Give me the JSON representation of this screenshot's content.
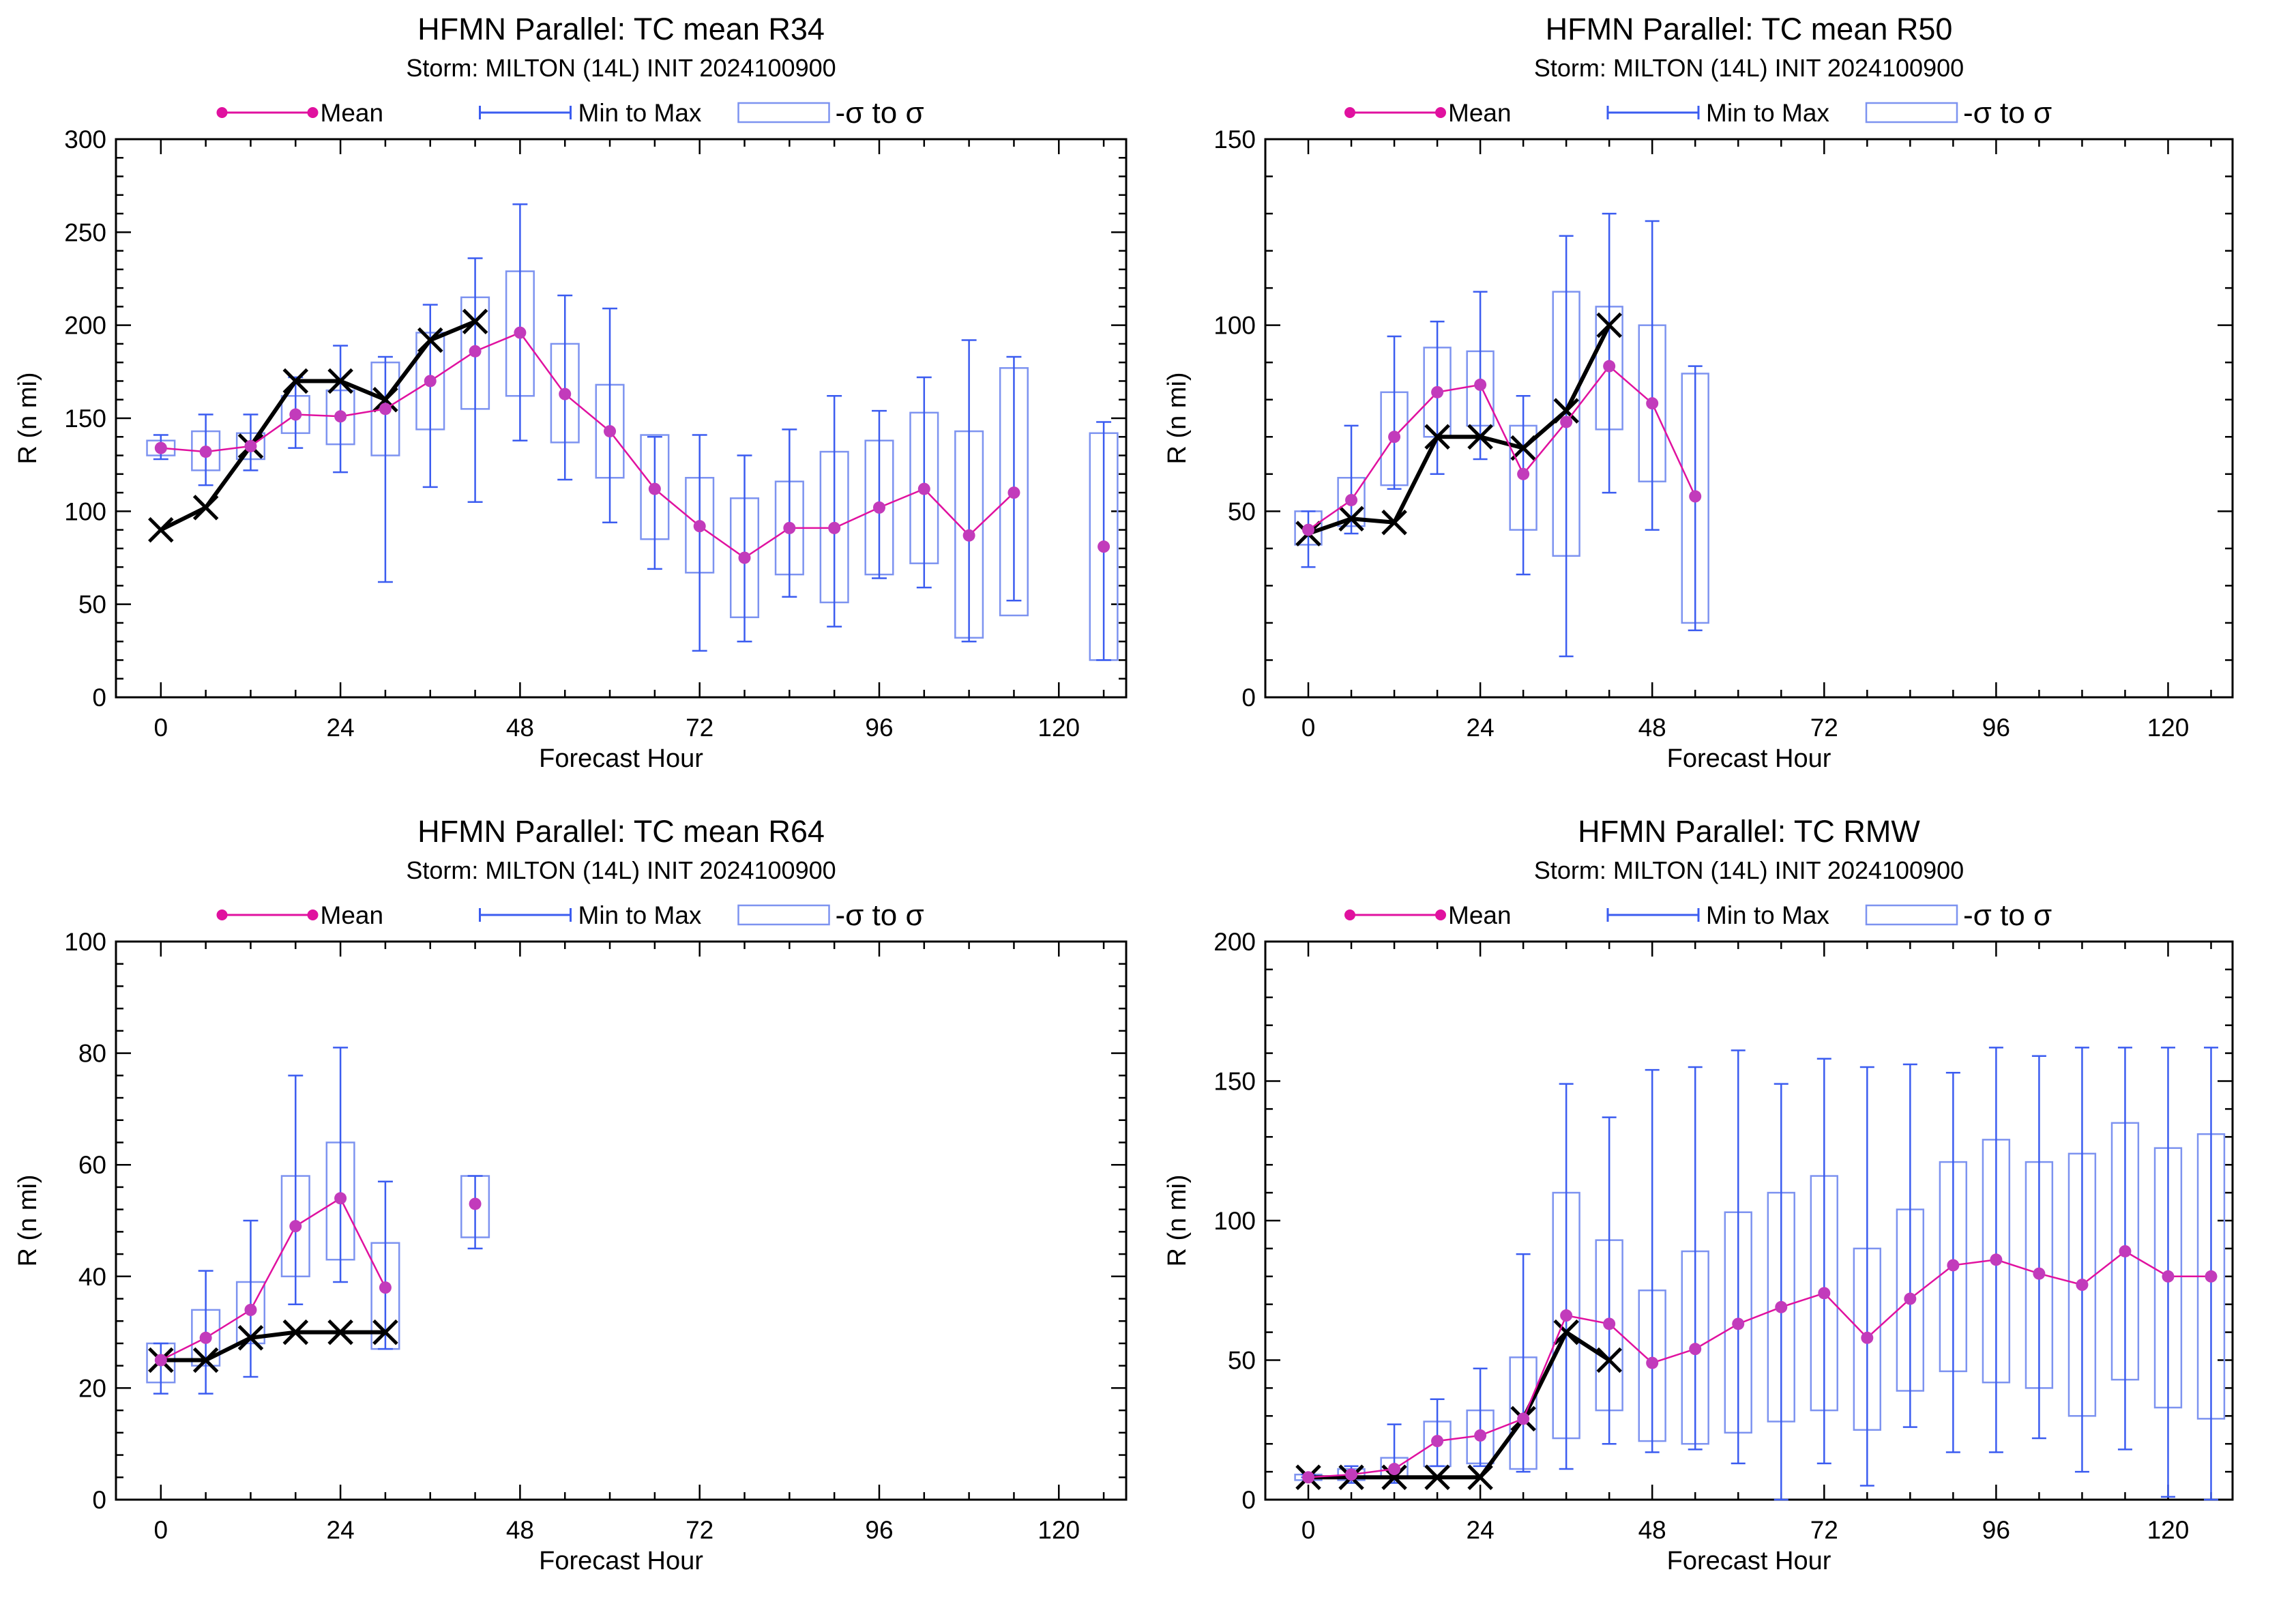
{
  "colors": {
    "mean": "#e0119f",
    "mean_marker": "#c23bbb",
    "range": "#3b5cf0",
    "sigma_box": "#7d93f0",
    "best_track": "#000000"
  },
  "legend": {
    "mean": "Mean",
    "range": "Min to Max",
    "sigma": "-σ to σ"
  },
  "chart_data": [
    {
      "type": "box",
      "title": "HFMN Parallel: TC mean R34",
      "subtitle": "Storm: MILTON (14L) INIT 2024100900",
      "xlabel": "Forecast Hour",
      "ylabel": "R (n mi)",
      "xlim": [
        -6,
        129
      ],
      "ylim": [
        0,
        300
      ],
      "xticks": [
        "0",
        "24",
        "48",
        "72",
        "96",
        "120"
      ],
      "yticks": [
        "0",
        "50",
        "100",
        "150",
        "200",
        "250",
        "300"
      ],
      "grid": false,
      "legend_position": "top",
      "series": [
        {
          "name": "Mean",
          "x": [
            0,
            6,
            12,
            18,
            24,
            30,
            36,
            42,
            48,
            54,
            60,
            66,
            72,
            78,
            84,
            90,
            96,
            102,
            108,
            114,
            126
          ],
          "mean": [
            134,
            132,
            135,
            152,
            151,
            155,
            170,
            186,
            196,
            163,
            143,
            112,
            92,
            75,
            91,
            91,
            102,
            112,
            87,
            110,
            81
          ],
          "min": [
            128,
            114,
            122,
            134,
            121,
            62,
            113,
            105,
            138,
            117,
            94,
            69,
            25,
            30,
            54,
            38,
            64,
            59,
            30,
            52,
            20
          ],
          "max": [
            141,
            152,
            152,
            172,
            189,
            183,
            211,
            236,
            265,
            216,
            209,
            140,
            141,
            130,
            144,
            162,
            154,
            172,
            192,
            183,
            148
          ],
          "sigma_low": [
            130,
            122,
            128,
            142,
            136,
            130,
            144,
            155,
            162,
            137,
            118,
            85,
            67,
            43,
            66,
            51,
            66,
            72,
            32,
            44,
            20
          ],
          "sigma_high": [
            138,
            143,
            142,
            162,
            165,
            180,
            196,
            215,
            229,
            190,
            168,
            141,
            118,
            107,
            116,
            132,
            138,
            153,
            143,
            177,
            142
          ]
        },
        {
          "name": "",
          "x": [
            0,
            6,
            12,
            18,
            24,
            30,
            36,
            42
          ],
          "values": [
            90,
            102,
            135,
            170,
            170,
            160,
            192,
            202
          ]
        }
      ]
    },
    {
      "type": "box",
      "title": "HFMN Parallel: TC mean R50",
      "subtitle": "Storm: MILTON (14L) INIT 2024100900",
      "xlabel": "Forecast Hour",
      "ylabel": "R (n mi)",
      "xlim": [
        -6,
        129
      ],
      "ylim": [
        0,
        150
      ],
      "xticks": [
        "0",
        "24",
        "48",
        "72",
        "96",
        "120"
      ],
      "yticks": [
        "0",
        "50",
        "100",
        "150"
      ],
      "grid": false,
      "legend_position": "top",
      "series": [
        {
          "name": "Mean",
          "x": [
            0,
            6,
            12,
            18,
            24,
            30,
            36,
            42,
            48,
            54
          ],
          "mean": [
            45,
            53,
            70,
            82,
            84,
            60,
            74,
            89,
            79,
            54
          ],
          "min": [
            35,
            44,
            56,
            60,
            64,
            33,
            11,
            55,
            45,
            18
          ],
          "max": [
            50,
            73,
            97,
            101,
            109,
            81,
            124,
            130,
            128,
            89
          ],
          "sigma_low": [
            41,
            46,
            57,
            70,
            73,
            45,
            38,
            72,
            58,
            20
          ],
          "sigma_high": [
            50,
            59,
            82,
            94,
            93,
            73,
            109,
            105,
            100,
            87
          ]
        },
        {
          "name": "",
          "x": [
            0,
            6,
            12,
            18,
            24,
            30,
            36,
            42
          ],
          "values": [
            44,
            48,
            47,
            70,
            70,
            67,
            77,
            100
          ]
        }
      ]
    },
    {
      "type": "box",
      "title": "HFMN Parallel: TC mean R64",
      "subtitle": "Storm: MILTON (14L) INIT 2024100900",
      "xlabel": "Forecast Hour",
      "ylabel": "R (n mi)",
      "xlim": [
        -6,
        129
      ],
      "ylim": [
        0,
        100
      ],
      "xticks": [
        "0",
        "24",
        "48",
        "72",
        "96",
        "120"
      ],
      "yticks": [
        "0",
        "20",
        "40",
        "60",
        "80",
        "100"
      ],
      "grid": false,
      "legend_position": "top",
      "series": [
        {
          "name": "Mean",
          "x": [
            0,
            6,
            12,
            18,
            24,
            30,
            42
          ],
          "mean": [
            25,
            29,
            34,
            49,
            54,
            38,
            53
          ],
          "min": [
            19,
            19,
            22,
            35,
            39,
            27,
            45
          ],
          "max": [
            28,
            41,
            50,
            76,
            81,
            57,
            58
          ],
          "sigma_low": [
            21,
            24,
            28,
            40,
            43,
            27,
            47
          ],
          "sigma_high": [
            28,
            34,
            39,
            58,
            64,
            46,
            58
          ]
        },
        {
          "name": "",
          "x": [
            0,
            6,
            12,
            18,
            24,
            30
          ],
          "values": [
            25,
            25,
            29,
            30,
            30,
            30
          ]
        }
      ]
    },
    {
      "type": "box",
      "title": "HFMN Parallel: TC RMW",
      "subtitle": "Storm: MILTON (14L) INIT 2024100900",
      "xlabel": "Forecast Hour",
      "ylabel": "R (n mi)",
      "xlim": [
        -6,
        129
      ],
      "ylim": [
        0,
        200
      ],
      "xticks": [
        "0",
        "24",
        "48",
        "72",
        "96",
        "120"
      ],
      "yticks": [
        "0",
        "50",
        "100",
        "150",
        "200"
      ],
      "grid": false,
      "legend_position": "top",
      "series": [
        {
          "name": "Mean",
          "x": [
            0,
            6,
            12,
            18,
            24,
            30,
            36,
            42,
            48,
            54,
            60,
            66,
            72,
            78,
            84,
            90,
            96,
            102,
            108,
            114,
            120,
            126
          ],
          "mean": [
            8,
            9,
            11,
            21,
            23,
            29,
            66,
            63,
            49,
            54,
            63,
            69,
            74,
            58,
            72,
            84,
            86,
            81,
            77,
            89,
            80,
            80
          ],
          "min": [
            8,
            6,
            6,
            12,
            12,
            10,
            11,
            20,
            17,
            18,
            13,
            0,
            13,
            5,
            26,
            17,
            17,
            22,
            10,
            18,
            1,
            0
          ],
          "max": [
            9,
            12,
            27,
            36,
            47,
            88,
            149,
            137,
            154,
            155,
            161,
            149,
            158,
            155,
            156,
            153,
            162,
            159,
            162,
            162,
            162,
            162
          ],
          "sigma_low": [
            7,
            7,
            8,
            12,
            13,
            11,
            22,
            32,
            21,
            20,
            24,
            28,
            32,
            25,
            39,
            46,
            42,
            40,
            30,
            43,
            33,
            29
          ],
          "sigma_high": [
            9,
            11,
            15,
            28,
            32,
            51,
            110,
            93,
            75,
            89,
            103,
            110,
            116,
            90,
            104,
            121,
            129,
            121,
            124,
            135,
            126,
            131
          ]
        },
        {
          "name": "",
          "x": [
            0,
            6,
            12,
            18,
            24,
            30,
            36,
            42
          ],
          "values": [
            8,
            8,
            8,
            8,
            8,
            29,
            60,
            50
          ]
        }
      ]
    }
  ]
}
